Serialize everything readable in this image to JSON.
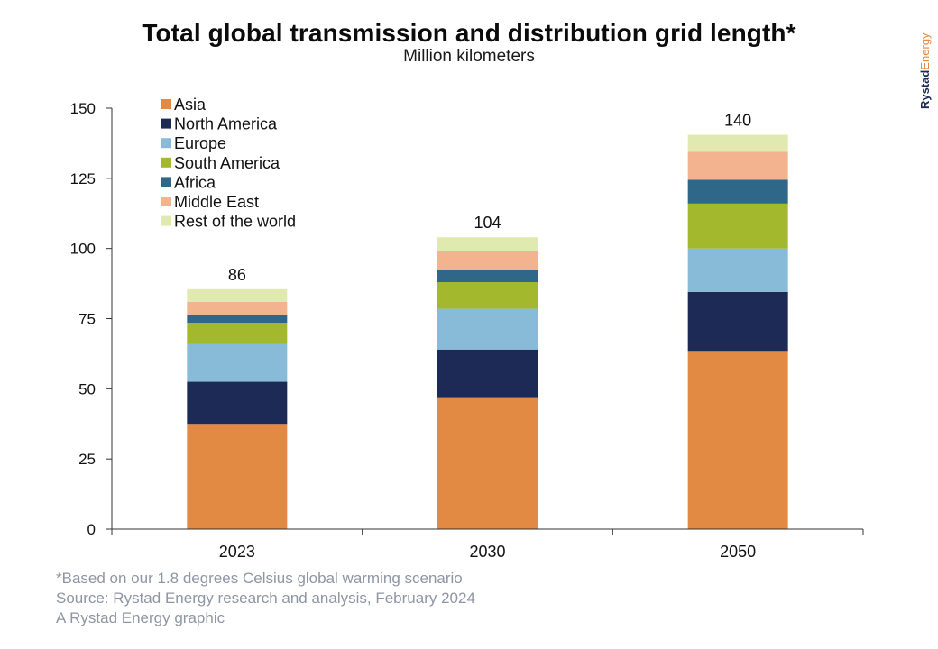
{
  "brand": {
    "part1": "Rystad",
    "part2": "Energy",
    "color1": "#1c2a55",
    "color2": "#e28a44"
  },
  "chart_data": {
    "type": "bar",
    "stacked": true,
    "title": "Total global transmission and distribution grid length*",
    "subtitle": "Million kilometers",
    "categories": [
      "2023",
      "2030",
      "2050"
    ],
    "series": [
      {
        "name": "Asia",
        "color": "#e28a44",
        "values": [
          37.5,
          47,
          63.5
        ]
      },
      {
        "name": "North America",
        "color": "#1c2a55",
        "values": [
          15,
          17,
          21
        ]
      },
      {
        "name": "Europe",
        "color": "#87bbd8",
        "values": [
          13.5,
          14.5,
          15.5
        ]
      },
      {
        "name": "South America",
        "color": "#a3b82c",
        "values": [
          7.5,
          9.5,
          16
        ]
      },
      {
        "name": "Africa",
        "color": "#2e6788",
        "values": [
          3,
          4.5,
          8.5
        ]
      },
      {
        "name": "Middle East",
        "color": "#f2b38e",
        "values": [
          4.5,
          6.5,
          10
        ]
      },
      {
        "name": "Rest of the world",
        "color": "#e0eab0",
        "values": [
          4.5,
          5,
          6
        ]
      }
    ],
    "totals": [
      86,
      104,
      140
    ],
    "yticks": [
      0,
      25,
      50,
      75,
      100,
      125,
      150
    ],
    "ylim": [
      0,
      150
    ],
    "xlabel": "",
    "ylabel": "",
    "grid": false,
    "legend_position": "top-left"
  },
  "footer": {
    "note": "*Based on our 1.8 degrees Celsius global warming scenario",
    "source": "Source: Rystad Energy research and analysis, February 2024",
    "credit": "A Rystad Energy graphic"
  }
}
